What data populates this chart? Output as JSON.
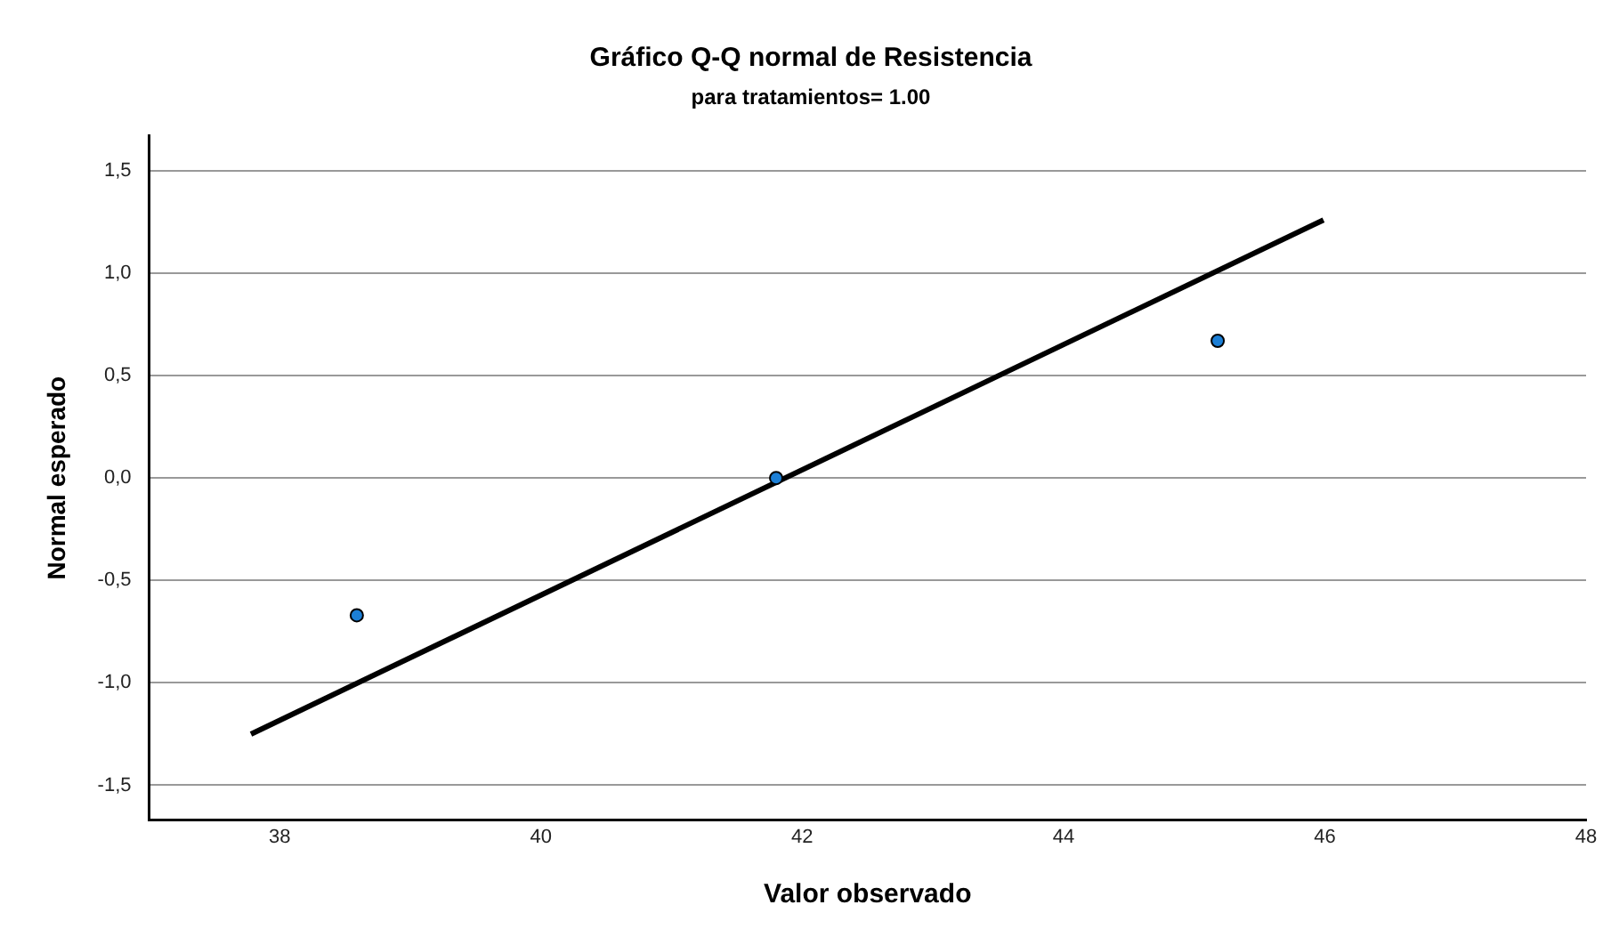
{
  "chart_data": {
    "type": "scatter",
    "title": "Gráfico Q-Q normal de Resistencia",
    "subtitle": "para tratamientos= 1.00",
    "xlabel": "Valor observado",
    "ylabel": "Normal esperado",
    "series": [
      {
        "color": "#1c7fd6",
        "x": [
          38.59,
          41.8,
          45.18
        ],
        "values": [
          -0.67,
          0,
          0.67
        ],
        "marker": "circle"
      },
      {
        "type": "line",
        "color": "#000000",
        "x": [
          37.78,
          45.99
        ],
        "values": [
          -1.25,
          1.26
        ],
        "marker": "none",
        "line_style": "solid"
      }
    ],
    "xlim": [
      37,
      48
    ],
    "xticks": [
      38,
      40,
      42,
      44,
      46,
      48
    ],
    "ylim": [
      -1.67,
      1.67
    ],
    "yticks": [
      {
        "value": -1.5,
        "label": "-1,5"
      },
      {
        "value": -1,
        "label": "-1,0"
      },
      {
        "value": -0.5,
        "label": "-0,5"
      },
      {
        "value": 0,
        "label": "0,0"
      },
      {
        "value": 0.5,
        "label": "0,5"
      },
      {
        "value": 1,
        "label": "1,0"
      },
      {
        "value": 1.5,
        "label": "1,5"
      }
    ],
    "grid": "y",
    "legend": false
  }
}
